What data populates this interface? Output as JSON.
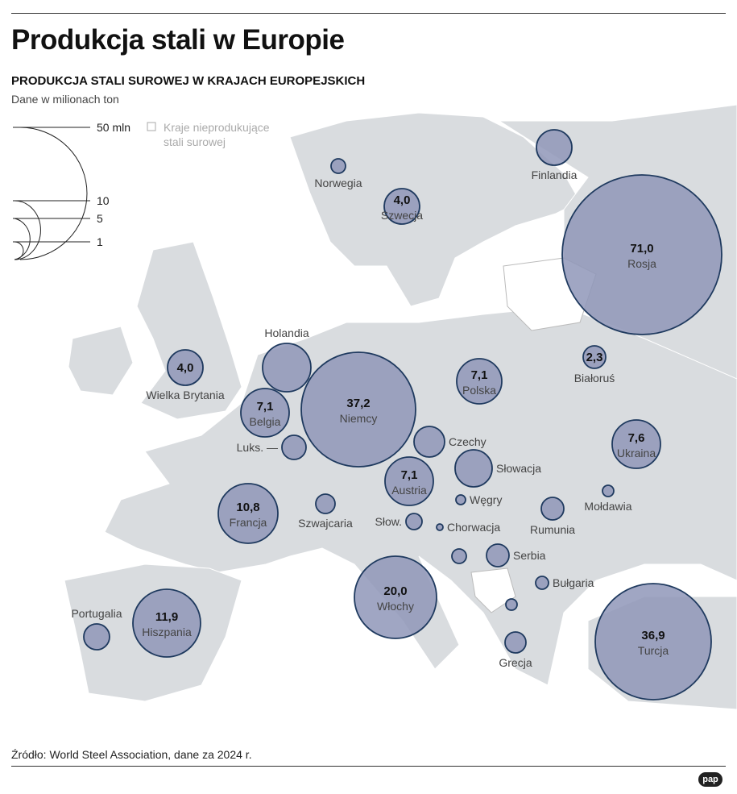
{
  "title": "Produkcja stali w Europie",
  "subtitle": "PRODUKCJA STALI SUROWEJ W KRAJACH EUROPEJSKICH",
  "unit": "Dane w milionach ton",
  "legend": {
    "sizes": [
      "50 mln",
      "10",
      "5",
      "1"
    ],
    "non_producing": "Kraje nieprodukujące stali surowej"
  },
  "source": "Źródło: World Steel Association, dane za 2024 r.",
  "logo": "pap",
  "colors": {
    "bubble": "#8f97b8",
    "bubble_stroke": "#1f3a5f",
    "land": "#d9dcdf",
    "non_producing": "#ffffff"
  },
  "countries": [
    {
      "name": "Finlandia",
      "value": null
    },
    {
      "name": "Norwegia",
      "value": null
    },
    {
      "name": "Szwecja",
      "value": "4,0"
    },
    {
      "name": "Rosja",
      "value": "71,0"
    },
    {
      "name": "Holandia",
      "value": null
    },
    {
      "name": "Wielka Brytania",
      "value": "4,0"
    },
    {
      "name": "Białoruś",
      "value": "2,3"
    },
    {
      "name": "Polska",
      "value": "7,1"
    },
    {
      "name": "Niemcy",
      "value": "37,2"
    },
    {
      "name": "Belgia",
      "value": "7,1"
    },
    {
      "name": "Luks.",
      "value": null
    },
    {
      "name": "Czechy",
      "value": null
    },
    {
      "name": "Ukraina",
      "value": "7,6"
    },
    {
      "name": "Słowacja",
      "value": null
    },
    {
      "name": "Austria",
      "value": "7,1"
    },
    {
      "name": "Węgry",
      "value": null
    },
    {
      "name": "Szwajcaria",
      "value": null
    },
    {
      "name": "Francja",
      "value": "10,8"
    },
    {
      "name": "Słow.",
      "value": null
    },
    {
      "name": "Chorwacja",
      "value": null
    },
    {
      "name": "Mołdawia",
      "value": null
    },
    {
      "name": "Rumunia",
      "value": null
    },
    {
      "name": "",
      "value": null
    },
    {
      "name": "Serbia",
      "value": null
    },
    {
      "name": "Bułgaria",
      "value": null
    },
    {
      "name": "Włochy",
      "value": "20,0"
    },
    {
      "name": "",
      "value": null
    },
    {
      "name": "Portugalia",
      "value": null
    },
    {
      "name": "Hiszpania",
      "value": "11,9"
    },
    {
      "name": "Grecja",
      "value": null
    },
    {
      "name": "Turcja",
      "value": "36,9"
    }
  ]
}
